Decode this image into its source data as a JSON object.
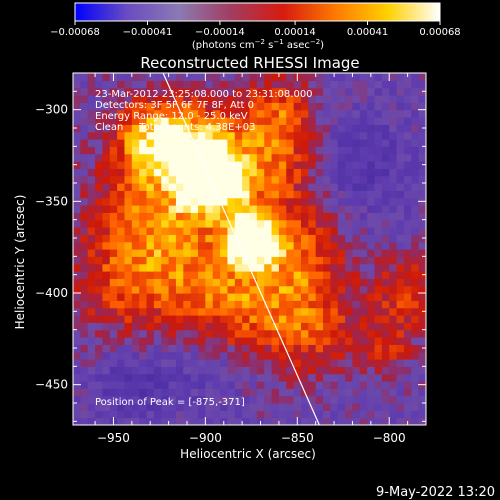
{
  "chart_data": {
    "type": "heatmap",
    "title": "Reconstructed RHESSI Image",
    "xlabel": "Heliocentric X (arcsec)",
    "ylabel": "Heliocentric Y (arcsec)",
    "xlim": [
      -972,
      -780
    ],
    "ylim": [
      -472,
      -280
    ],
    "xticks": [
      -950,
      -900,
      -850,
      -800
    ],
    "yticks": [
      -300,
      -350,
      -400,
      -450
    ],
    "xtick_labels": [
      "−950",
      "−900",
      "−850",
      "−800"
    ],
    "ytick_labels": [
      "−300",
      "−350",
      "−400",
      "−450"
    ],
    "colorbar": {
      "range": [
        -0.00068,
        0.00068
      ],
      "ticks": [
        -0.00068,
        -0.00041,
        -0.00014,
        0.00014,
        0.00041,
        0.00068
      ],
      "tick_labels": [
        "−0.00068",
        "−0.00041",
        "−0.00014",
        "0.00014",
        "0.00041",
        "0.00068"
      ],
      "unit_main": "(photons cm",
      "unit_sup1": "−2",
      "unit_mid1": " s",
      "unit_sup2": "−1",
      "unit_mid2": " asec",
      "unit_sup3": "−2",
      "unit_end": ")",
      "colors": [
        "#0000ff",
        "#6a4cc0",
        "#8b7ab3",
        "#a23c60",
        "#d81b0f",
        "#ff7a00",
        "#ffd000",
        "#ffffff"
      ]
    },
    "info_lines": [
      "23-Mar-2012 23:25:08.000 to 23:31:08.000",
      "Detectors: 3F 5F 6F 7F 8F, Att 0",
      "Energy Range: 12.0 - 25.0 keV",
      "Clean     Total counts: 4.38E+03"
    ],
    "peak_label": "Position of Peak = [-875,-371]",
    "peak": [
      -875,
      -371
    ],
    "limb_line": [
      [
        -923,
        -280
      ],
      [
        -838,
        -472
      ]
    ],
    "grid": false
  },
  "footer": {
    "timestamp": "9-May-2022 13:20"
  }
}
